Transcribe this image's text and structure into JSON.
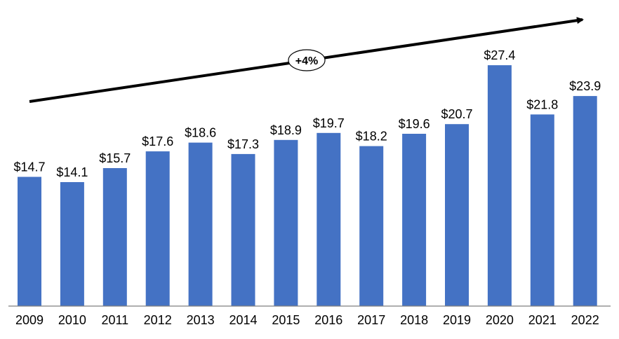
{
  "chart_data": {
    "type": "bar",
    "categories": [
      "2009",
      "2010",
      "2011",
      "2012",
      "2013",
      "2014",
      "2015",
      "2016",
      "2017",
      "2018",
      "2019",
      "2020",
      "2021",
      "2022"
    ],
    "values": [
      14.7,
      14.1,
      15.7,
      17.6,
      18.6,
      17.3,
      18.9,
      19.7,
      18.2,
      19.6,
      20.7,
      27.4,
      21.8,
      23.9
    ],
    "value_labels": [
      "$14.7",
      "$14.1",
      "$15.7",
      "$17.6",
      "$18.6",
      "$17.3",
      "$18.9",
      "$19.7",
      "$18.2",
      "$19.6",
      "$20.7",
      "$27.4",
      "$21.8",
      "$23.9"
    ],
    "ylim": [
      0,
      30
    ],
    "grid": false,
    "bar_color": "#4472C4",
    "trend_annotation": "+4%"
  }
}
